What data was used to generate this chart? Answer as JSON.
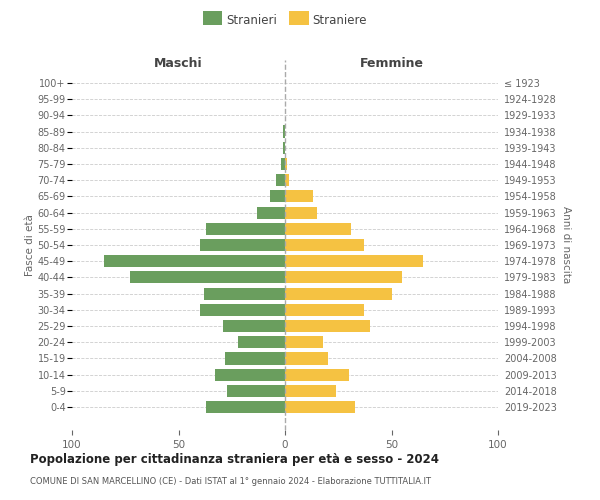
{
  "age_groups": [
    "100+",
    "95-99",
    "90-94",
    "85-89",
    "80-84",
    "75-79",
    "70-74",
    "65-69",
    "60-64",
    "55-59",
    "50-54",
    "45-49",
    "40-44",
    "35-39",
    "30-34",
    "25-29",
    "20-24",
    "15-19",
    "10-14",
    "5-9",
    "0-4"
  ],
  "birth_years": [
    "≤ 1923",
    "1924-1928",
    "1929-1933",
    "1934-1938",
    "1939-1943",
    "1944-1948",
    "1949-1953",
    "1954-1958",
    "1959-1963",
    "1964-1968",
    "1969-1973",
    "1974-1978",
    "1979-1983",
    "1984-1988",
    "1989-1993",
    "1994-1998",
    "1999-2003",
    "2004-2008",
    "2009-2013",
    "2014-2018",
    "2019-2023"
  ],
  "males": [
    0,
    0,
    0,
    1,
    1,
    2,
    4,
    7,
    13,
    37,
    40,
    85,
    73,
    38,
    40,
    29,
    22,
    28,
    33,
    27,
    37
  ],
  "females": [
    0,
    0,
    0,
    0,
    0,
    1,
    2,
    13,
    15,
    31,
    37,
    65,
    55,
    50,
    37,
    40,
    18,
    20,
    30,
    24,
    33
  ],
  "male_color": "#6a9e5e",
  "female_color": "#f5c242",
  "background_color": "#ffffff",
  "grid_color": "#cccccc",
  "title": "Popolazione per cittadinanza straniera per età e sesso - 2024",
  "subtitle": "COMUNE DI SAN MARCELLINO (CE) - Dati ISTAT al 1° gennaio 2024 - Elaborazione TUTTITALIA.IT",
  "xlabel_left": "Maschi",
  "xlabel_right": "Femmine",
  "ylabel_left": "Fasce di età",
  "ylabel_right": "Anni di nascita",
  "legend_males": "Stranieri",
  "legend_females": "Straniere",
  "xlim": 100
}
